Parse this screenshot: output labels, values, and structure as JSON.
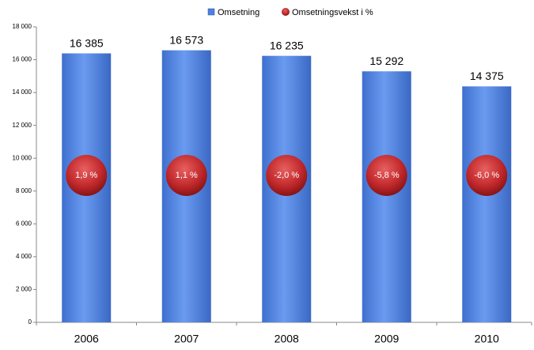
{
  "chart_data": {
    "type": "bar",
    "categories": [
      "2006",
      "2007",
      "2008",
      "2009",
      "2010"
    ],
    "series": [
      {
        "name": "Omsetning",
        "color": "#4f81e0",
        "values": [
          16385,
          16573,
          16235,
          15292,
          14375
        ],
        "value_labels": [
          "16 385",
          "16 573",
          "16 235",
          "15 292",
          "14 375"
        ]
      },
      {
        "name": "Omsetningsvekst i %",
        "color": "#c0282b",
        "values": [
          1.9,
          1.1,
          -2.0,
          -5.8,
          -6.0
        ],
        "value_labels": [
          "1,9 %",
          "1,1 %",
          "-2,0 %",
          "-5,8 %",
          "-6,0 %"
        ]
      }
    ],
    "ylim": [
      0,
      18000
    ],
    "yticks": [
      {
        "value": 0,
        "label": "0"
      },
      {
        "value": 2000,
        "label": "2 000"
      },
      {
        "value": 4000,
        "label": "4 000"
      },
      {
        "value": 6000,
        "label": "6 000"
      },
      {
        "value": 8000,
        "label": "8 000"
      },
      {
        "value": 10000,
        "label": "10 000"
      },
      {
        "value": 12000,
        "label": "12 000"
      },
      {
        "value": 14000,
        "label": "14 000"
      },
      {
        "value": 16000,
        "label": "16 000"
      },
      {
        "value": 18000,
        "label": "18 000"
      }
    ],
    "legend": "top"
  }
}
